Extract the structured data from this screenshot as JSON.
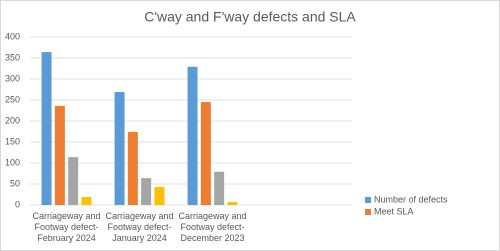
{
  "chart_data": {
    "type": "bar",
    "title": "C'way and F'way defects and SLA",
    "categories": [
      "Carriageway and Footway defect-February 2024",
      "Carriageway and Footway defect-January 2024",
      "Carriageway and Footway defect-December 2023"
    ],
    "series": [
      {
        "name": "Number of defects",
        "color": "#5b9bd5",
        "values": [
          364,
          269,
          329
        ]
      },
      {
        "name": "Meet SLA",
        "color": "#ed7d31",
        "values": [
          236,
          174,
          245
        ]
      },
      {
        "color": "#a5a5a5",
        "values": [
          114,
          64,
          79
        ]
      },
      {
        "color": "#ffc000",
        "values": [
          19,
          43,
          7
        ]
      }
    ],
    "ylim": [
      0,
      400
    ],
    "yticks": [
      0,
      50,
      100,
      150,
      200,
      250,
      300,
      350,
      400
    ],
    "grid": true
  }
}
